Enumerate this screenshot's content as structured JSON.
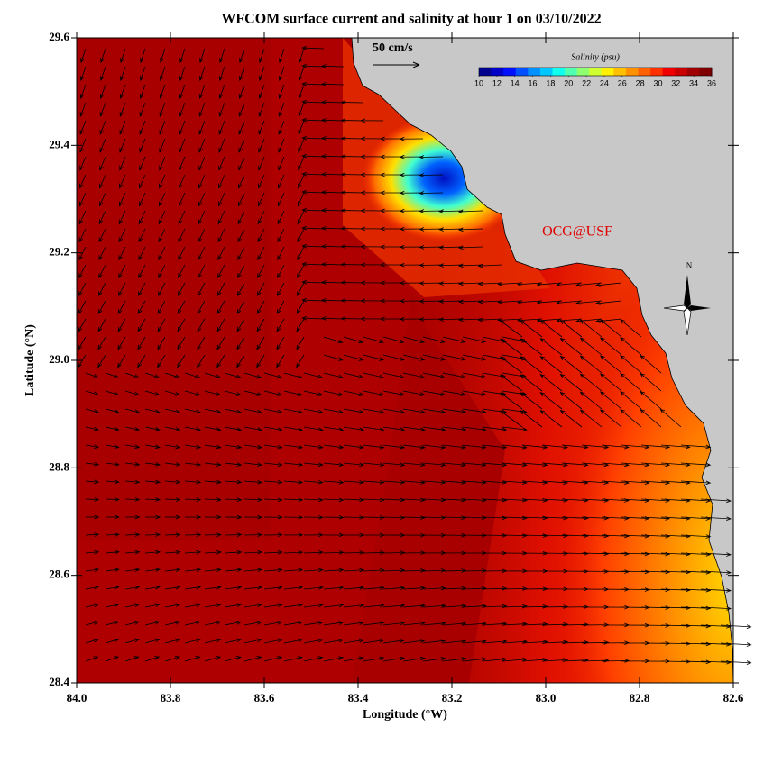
{
  "chart_data": {
    "type": "map",
    "title": "WFCOM surface current and salinity at hour 1 on 03/10/2022",
    "x_label": "Longitude (°W)",
    "y_label": "Latitude (°N)",
    "xlim": [
      84.0,
      82.6
    ],
    "xticks": [
      {
        "value": 84.0,
        "label": "84.0"
      },
      83.8,
      83.6,
      83.4,
      83.2,
      {
        "value": 83.0,
        "label": "83.0"
      },
      82.8,
      82.6
    ],
    "ylim": [
      28.4,
      29.6
    ],
    "yticks": [
      28.4,
      28.6,
      28.8,
      {
        "value": 29.0,
        "label": "29.0"
      },
      29.2,
      29.4,
      29.6
    ],
    "scale_label": "50 cm/s",
    "credit": "OCG@USF",
    "compass_label": "N",
    "colorbar": {
      "title": "Salinity (psu)",
      "range": [
        10,
        36
      ],
      "ticks": [
        10,
        12,
        14,
        16,
        18,
        20,
        22,
        24,
        26,
        28,
        30,
        32,
        34,
        36
      ],
      "colors": [
        "#00008f",
        "#0000c8",
        "#0010ff",
        "#0050ff",
        "#0090ff",
        "#00c8ff",
        "#10ffef",
        "#50ffaf",
        "#90ff6f",
        "#cfff30",
        "#ffef00",
        "#ffc000",
        "#ff9000",
        "#ff6000",
        "#ff3000",
        "#f00000",
        "#c80000",
        "#a00000",
        "#800000"
      ]
    }
  }
}
